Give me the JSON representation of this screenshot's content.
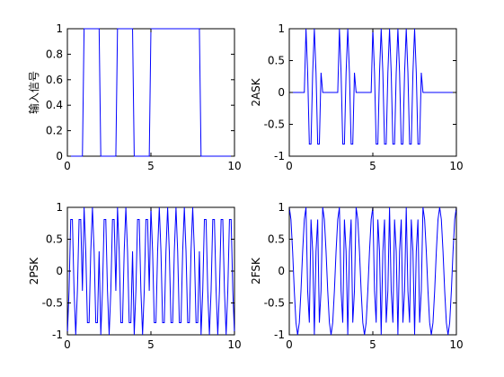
{
  "chart_data": [
    {
      "type": "line",
      "ylabel": "输入信号",
      "color": "#0000ff",
      "x": [
        0,
        0.1,
        0.2,
        0.3,
        0.4,
        0.5,
        0.6,
        0.7,
        0.8,
        0.9,
        1,
        1.1,
        1.2,
        1.3,
        1.4,
        1.5,
        1.6,
        1.7,
        1.8,
        1.9,
        2,
        2.1,
        2.2,
        2.3,
        2.4,
        2.5,
        2.6,
        2.7,
        2.8,
        2.9,
        3,
        3.1,
        3.2,
        3.3,
        3.4,
        3.5,
        3.6,
        3.7,
        3.8,
        3.9,
        4,
        4.1,
        4.2,
        4.3,
        4.4,
        4.5,
        4.6,
        4.7,
        4.8,
        4.9,
        5,
        5.1,
        5.2,
        5.3,
        5.4,
        5.5,
        5.6,
        5.7,
        5.8,
        5.9,
        6,
        6.1,
        6.2,
        6.3,
        6.4,
        6.5,
        6.6,
        6.7,
        6.8,
        6.9,
        7,
        7.1,
        7.2,
        7.3,
        7.4,
        7.5,
        7.6,
        7.7,
        7.8,
        7.9,
        8,
        8.1,
        8.2,
        8.3,
        8.4,
        8.5,
        8.6,
        8.7,
        8.8,
        8.9,
        9,
        9.1,
        9.2,
        9.3,
        9.4,
        9.5,
        9.6,
        9.7,
        9.8,
        9.9,
        10
      ],
      "values": [
        0,
        0,
        0,
        0,
        0,
        0,
        0,
        0,
        0,
        0,
        1,
        1,
        1,
        1,
        1,
        1,
        1,
        1,
        1,
        1,
        0,
        0,
        0,
        0,
        0,
        0,
        0,
        0,
        0,
        0,
        1,
        1,
        1,
        1,
        1,
        1,
        1,
        1,
        1,
        1,
        0,
        0,
        0,
        0,
        0,
        0,
        0,
        0,
        0,
        0,
        1,
        1,
        1,
        1,
        1,
        1,
        1,
        1,
        1,
        1,
        1,
        1,
        1,
        1,
        1,
        1,
        1,
        1,
        1,
        1,
        1,
        1,
        1,
        1,
        1,
        1,
        1,
        1,
        1,
        1,
        0,
        0,
        0,
        0,
        0,
        0,
        0,
        0,
        0,
        0,
        0,
        0,
        0,
        0,
        0,
        0,
        0,
        0,
        0,
        0,
        0
      ],
      "xlim": [
        0,
        10
      ],
      "ylim": [
        0,
        1
      ],
      "xticks": [
        0,
        5,
        10
      ],
      "yticks": [
        0,
        0.2,
        0.4,
        0.6,
        0.8,
        1
      ]
    },
    {
      "type": "line",
      "ylabel": "2ASK",
      "color": "#0000ff",
      "x": [
        0,
        0.1,
        0.2,
        0.3,
        0.4,
        0.5,
        0.6,
        0.7,
        0.8,
        0.9,
        1,
        1.1,
        1.2,
        1.3,
        1.4,
        1.5,
        1.6,
        1.7,
        1.8,
        1.9,
        2,
        2.1,
        2.2,
        2.3,
        2.4,
        2.5,
        2.6,
        2.7,
        2.8,
        2.9,
        3,
        3.1,
        3.2,
        3.3,
        3.4,
        3.5,
        3.6,
        3.7,
        3.8,
        3.9,
        4,
        4.1,
        4.2,
        4.3,
        4.4,
        4.5,
        4.6,
        4.7,
        4.8,
        4.9,
        5,
        5.1,
        5.2,
        5.3,
        5.4,
        5.5,
        5.6,
        5.7,
        5.8,
        5.9,
        6,
        6.1,
        6.2,
        6.3,
        6.4,
        6.5,
        6.6,
        6.7,
        6.8,
        6.9,
        7,
        7.1,
        7.2,
        7.3,
        7.4,
        7.5,
        7.6,
        7.7,
        7.8,
        7.9,
        8,
        8.1,
        8.2,
        8.3,
        8.4,
        8.5,
        8.6,
        8.7,
        8.8,
        8.9,
        9,
        9.1,
        9.2,
        9.3,
        9.4,
        9.5,
        9.6,
        9.7,
        9.8,
        9.9,
        10
      ],
      "values": [
        0,
        0,
        0,
        0,
        0,
        0,
        0,
        0,
        0,
        0,
        1,
        0.309,
        -0.809,
        -0.809,
        0.309,
        1,
        0.309,
        -0.809,
        -0.809,
        0.309,
        0,
        0,
        0,
        0,
        0,
        0,
        0,
        0,
        0,
        0,
        1,
        0.309,
        -0.809,
        -0.809,
        0.309,
        1,
        0.309,
        -0.809,
        -0.809,
        0.309,
        0,
        0,
        0,
        0,
        0,
        0,
        0,
        0,
        0,
        0,
        1,
        0.309,
        -0.809,
        -0.809,
        0.309,
        1,
        0.309,
        -0.809,
        -0.809,
        0.309,
        1,
        0.309,
        -0.809,
        -0.809,
        0.309,
        1,
        0.309,
        -0.809,
        -0.809,
        0.309,
        1,
        0.309,
        -0.809,
        -0.809,
        0.309,
        1,
        0.309,
        -0.809,
        -0.809,
        0.309,
        0,
        0,
        0,
        0,
        0,
        0,
        0,
        0,
        0,
        0,
        0,
        0,
        0,
        0,
        0,
        0,
        0,
        0,
        0,
        0,
        0
      ],
      "xlim": [
        0,
        10
      ],
      "ylim": [
        -1,
        1
      ],
      "xticks": [
        0,
        5,
        10
      ],
      "yticks": [
        -1,
        -0.5,
        0,
        0.5,
        1
      ]
    },
    {
      "type": "line",
      "ylabel": "2PSK",
      "color": "#0000ff",
      "x": [
        0,
        0.1,
        0.2,
        0.3,
        0.4,
        0.5,
        0.6,
        0.7,
        0.8,
        0.9,
        1,
        1.1,
        1.2,
        1.3,
        1.4,
        1.5,
        1.6,
        1.7,
        1.8,
        1.9,
        2,
        2.1,
        2.2,
        2.3,
        2.4,
        2.5,
        2.6,
        2.7,
        2.8,
        2.9,
        3,
        3.1,
        3.2,
        3.3,
        3.4,
        3.5,
        3.6,
        3.7,
        3.8,
        3.9,
        4,
        4.1,
        4.2,
        4.3,
        4.4,
        4.5,
        4.6,
        4.7,
        4.8,
        4.9,
        5,
        5.1,
        5.2,
        5.3,
        5.4,
        5.5,
        5.6,
        5.7,
        5.8,
        5.9,
        6,
        6.1,
        6.2,
        6.3,
        6.4,
        6.5,
        6.6,
        6.7,
        6.8,
        6.9,
        7,
        7.1,
        7.2,
        7.3,
        7.4,
        7.5,
        7.6,
        7.7,
        7.8,
        7.9,
        8,
        8.1,
        8.2,
        8.3,
        8.4,
        8.5,
        8.6,
        8.7,
        8.8,
        8.9,
        9,
        9.1,
        9.2,
        9.3,
        9.4,
        9.5,
        9.6,
        9.7,
        9.8,
        9.9,
        10
      ],
      "values": [
        -1,
        -0.309,
        0.809,
        0.809,
        -0.309,
        -1,
        -0.309,
        0.809,
        0.809,
        -0.309,
        1,
        0.309,
        -0.809,
        -0.809,
        0.309,
        1,
        0.309,
        -0.809,
        -0.809,
        0.309,
        -1,
        -0.309,
        0.809,
        0.809,
        -0.309,
        -1,
        -0.309,
        0.809,
        0.809,
        -0.309,
        1,
        0.309,
        -0.809,
        -0.809,
        0.309,
        1,
        0.309,
        -0.809,
        -0.809,
        0.309,
        -1,
        -0.309,
        0.809,
        0.809,
        -0.309,
        -1,
        -0.309,
        0.809,
        0.809,
        -0.309,
        1,
        0.309,
        -0.809,
        -0.809,
        0.309,
        1,
        0.309,
        -0.809,
        -0.809,
        0.309,
        1,
        0.309,
        -0.809,
        -0.809,
        0.309,
        1,
        0.309,
        -0.809,
        -0.809,
        0.309,
        1,
        0.309,
        -0.809,
        -0.809,
        0.309,
        1,
        0.309,
        -0.809,
        -0.809,
        0.309,
        -1,
        -0.309,
        0.809,
        0.809,
        -0.309,
        -1,
        -0.309,
        0.809,
        0.809,
        -0.309,
        -1,
        -0.309,
        0.809,
        0.809,
        -0.309,
        -1,
        -0.309,
        0.809,
        0.809,
        -0.309,
        -1
      ],
      "xlim": [
        0,
        10
      ],
      "ylim": [
        -1,
        1
      ],
      "xticks": [
        0,
        5,
        10
      ],
      "yticks": [
        -1,
        -0.5,
        0,
        0.5,
        1
      ]
    },
    {
      "type": "line",
      "ylabel": "2FSK",
      "color": "#0000ff",
      "x": [
        0,
        0.1,
        0.2,
        0.3,
        0.4,
        0.5,
        0.6,
        0.7,
        0.8,
        0.9,
        1,
        1.1,
        1.2,
        1.3,
        1.4,
        1.5,
        1.6,
        1.7,
        1.8,
        1.9,
        2,
        2.1,
        2.2,
        2.3,
        2.4,
        2.5,
        2.6,
        2.7,
        2.8,
        2.9,
        3,
        3.1,
        3.2,
        3.3,
        3.4,
        3.5,
        3.6,
        3.7,
        3.8,
        3.9,
        4,
        4.1,
        4.2,
        4.3,
        4.4,
        4.5,
        4.6,
        4.7,
        4.8,
        4.9,
        5,
        5.1,
        5.2,
        5.3,
        5.4,
        5.5,
        5.6,
        5.7,
        5.8,
        5.9,
        6,
        6.1,
        6.2,
        6.3,
        6.4,
        6.5,
        6.6,
        6.7,
        6.8,
        6.9,
        7,
        7.1,
        7.2,
        7.3,
        7.4,
        7.5,
        7.6,
        7.7,
        7.8,
        7.9,
        8,
        8.1,
        8.2,
        8.3,
        8.4,
        8.5,
        8.6,
        8.7,
        8.8,
        8.9,
        9,
        9.1,
        9.2,
        9.3,
        9.4,
        9.5,
        9.6,
        9.7,
        9.8,
        9.9,
        10
      ],
      "values": [
        1,
        0.809,
        0.309,
        -0.309,
        -0.809,
        -1,
        -0.809,
        -0.309,
        0.309,
        0.809,
        1,
        -0.309,
        -0.809,
        0.809,
        0.309,
        -1,
        0.309,
        0.809,
        -0.809,
        -0.309,
        1,
        0.809,
        0.309,
        -0.309,
        -0.809,
        -1,
        -0.809,
        -0.309,
        0.309,
        0.809,
        1,
        -0.309,
        -0.809,
        0.809,
        0.309,
        -1,
        0.309,
        0.809,
        -0.809,
        -0.309,
        1,
        0.809,
        0.309,
        -0.309,
        -0.809,
        -1,
        -0.809,
        -0.309,
        0.309,
        0.809,
        1,
        -0.309,
        -0.809,
        0.809,
        0.309,
        -1,
        0.309,
        0.809,
        -0.809,
        -0.309,
        1,
        -0.309,
        -0.809,
        0.809,
        0.309,
        -1,
        0.309,
        0.809,
        -0.809,
        -0.309,
        1,
        -0.309,
        -0.809,
        0.809,
        0.309,
        -1,
        0.309,
        0.809,
        -0.809,
        -0.309,
        1,
        0.809,
        0.309,
        -0.309,
        -0.809,
        -1,
        -0.809,
        -0.309,
        0.309,
        0.809,
        1,
        0.809,
        0.309,
        -0.309,
        -0.809,
        -1,
        -0.809,
        -0.309,
        0.309,
        0.809,
        1
      ],
      "xlim": [
        0,
        10
      ],
      "ylim": [
        -1,
        1
      ],
      "xticks": [
        0,
        5,
        10
      ],
      "yticks": [
        -1,
        -0.5,
        0,
        0.5,
        1
      ]
    }
  ]
}
